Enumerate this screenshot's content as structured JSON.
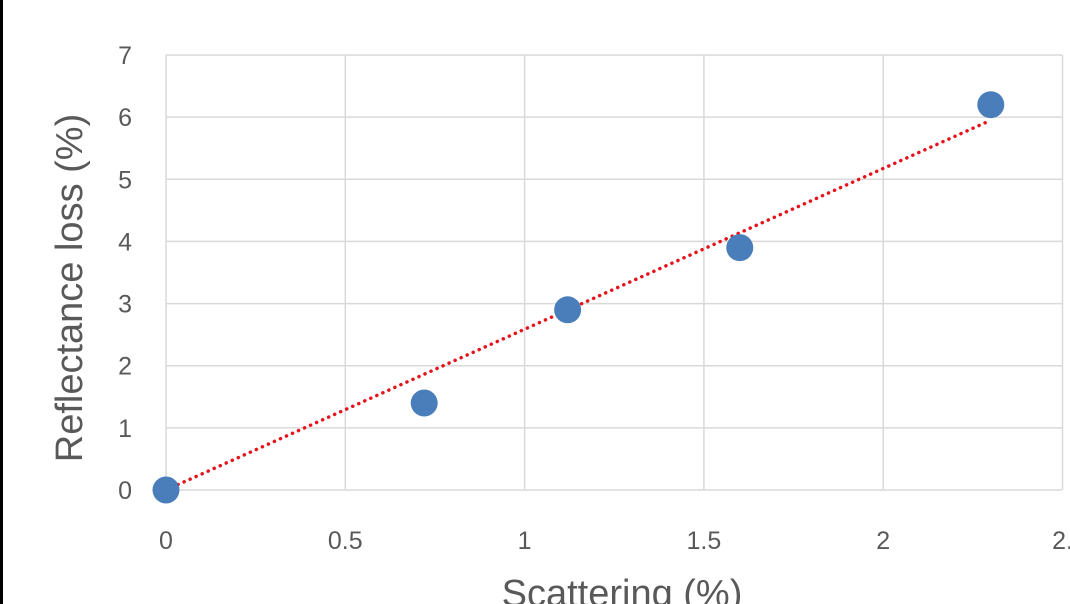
{
  "chart_data": {
    "type": "scatter",
    "title": "",
    "xlabel": "Scattering (%)",
    "ylabel": "Reflectance loss (%)",
    "xlim": [
      0,
      2.5
    ],
    "ylim": [
      0,
      7
    ],
    "x_ticks": [
      "0",
      "0.5",
      "1",
      "1.5",
      "2",
      "2."
    ],
    "y_ticks": [
      "0",
      "1",
      "2",
      "3",
      "4",
      "5",
      "6",
      "7"
    ],
    "grid": true,
    "legend": "none",
    "series": [
      {
        "points": [
          {
            "x": 0.0,
            "y": 0.0
          },
          {
            "x": 0.72,
            "y": 1.4
          },
          {
            "x": 1.12,
            "y": 2.9
          },
          {
            "x": 1.6,
            "y": 3.9
          },
          {
            "x": 2.3,
            "y": 6.2
          }
        ],
        "color": "#4a7ebb"
      }
    ],
    "trendline": {
      "style": "dotted",
      "color": "#e8121a",
      "points": [
        {
          "x": 0.0,
          "y": 0.0
        },
        {
          "x": 2.3,
          "y": 5.95
        }
      ]
    }
  }
}
